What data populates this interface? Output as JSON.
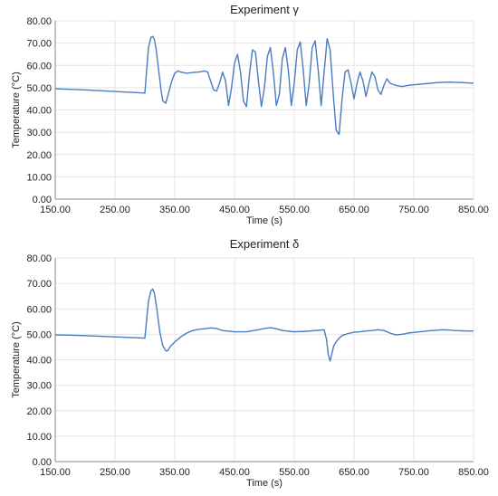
{
  "chart_data": [
    {
      "type": "line",
      "title": "Experiment γ",
      "xlabel": "Time (s)",
      "ylabel": "Temperature (°C)",
      "xlim": [
        150,
        850
      ],
      "ylim": [
        0,
        80
      ],
      "x_ticks": [
        "150.00",
        "250.00",
        "350.00",
        "450.00",
        "550.00",
        "650.00",
        "750.00",
        "850.00"
      ],
      "y_ticks": [
        "0.00",
        "10.00",
        "20.00",
        "30.00",
        "40.00",
        "50.00",
        "60.00",
        "70.00",
        "80.00"
      ],
      "grid": true,
      "series": [
        {
          "color": "#4a7cc0",
          "x": [
            150,
            200,
            250,
            300,
            303,
            306,
            310,
            313,
            316,
            319,
            323,
            327,
            330,
            335,
            340,
            345,
            350,
            355,
            360,
            370,
            380,
            390,
            400,
            405,
            410,
            415,
            420,
            425,
            430,
            435,
            440,
            445,
            450,
            455,
            460,
            465,
            470,
            475,
            480,
            485,
            490,
            495,
            500,
            505,
            510,
            515,
            520,
            525,
            530,
            535,
            540,
            545,
            550,
            555,
            560,
            565,
            570,
            575,
            580,
            585,
            590,
            595,
            600,
            605,
            610,
            615,
            620,
            625,
            630,
            635,
            640,
            645,
            650,
            655,
            660,
            665,
            670,
            675,
            680,
            685,
            690,
            695,
            700,
            705,
            710,
            720,
            730,
            740,
            750,
            770,
            790,
            810,
            830,
            850
          ],
          "values": [
            49.5,
            49.0,
            48.3,
            47.6,
            58.0,
            68.0,
            72.5,
            73.0,
            71.5,
            67.0,
            58.0,
            49.0,
            44.0,
            43.0,
            48.0,
            53.0,
            56.5,
            57.5,
            57.0,
            56.5,
            56.8,
            57.0,
            57.5,
            57.0,
            53.0,
            49.0,
            48.5,
            52.0,
            57.0,
            53.0,
            42.0,
            50.0,
            61.0,
            65.0,
            57.0,
            44.0,
            41.5,
            56.0,
            67.0,
            66.0,
            53.0,
            41.5,
            50.0,
            64.0,
            68.0,
            57.0,
            42.0,
            47.0,
            63.0,
            68.0,
            58.0,
            42.0,
            52.0,
            67.0,
            70.5,
            58.0,
            42.0,
            52.0,
            68.0,
            71.0,
            58.0,
            42.0,
            57.0,
            72.0,
            67.0,
            48.0,
            31.0,
            29.0,
            45.0,
            57.0,
            58.0,
            52.0,
            45.0,
            52.0,
            57.0,
            53.0,
            46.0,
            52.0,
            57.0,
            55.0,
            49.0,
            47.0,
            51.0,
            54.0,
            52.0,
            51.0,
            50.5,
            51.0,
            51.3,
            51.8,
            52.3,
            52.5,
            52.3,
            52.0
          ]
        }
      ]
    },
    {
      "type": "line",
      "title": "Experiment δ",
      "xlabel": "Time (s)",
      "ylabel": "Temperature (°C)",
      "xlim": [
        150,
        850
      ],
      "ylim": [
        0,
        80
      ],
      "x_ticks": [
        "150.00",
        "250.00",
        "350.00",
        "450.00",
        "550.00",
        "650.00",
        "750.00",
        "850.00"
      ],
      "y_ticks": [
        "0.00",
        "10.00",
        "20.00",
        "30.00",
        "40.00",
        "50.00",
        "60.00",
        "70.00",
        "80.00"
      ],
      "grid": true,
      "series": [
        {
          "color": "#4a7cc0",
          "x": [
            150,
            200,
            250,
            300,
            303,
            306,
            310,
            313,
            316,
            320,
            325,
            330,
            335,
            338,
            342,
            350,
            360,
            370,
            380,
            390,
            400,
            410,
            420,
            430,
            450,
            470,
            490,
            500,
            510,
            520,
            530,
            550,
            570,
            590,
            600,
            604,
            607,
            610,
            613,
            616,
            620,
            625,
            630,
            640,
            650,
            660,
            670,
            680,
            690,
            700,
            710,
            720,
            730,
            740,
            760,
            780,
            800,
            820,
            840,
            850
          ],
          "values": [
            49.8,
            49.5,
            49.0,
            48.5,
            56.0,
            63.0,
            67.0,
            67.8,
            66.0,
            60.0,
            51.0,
            45.5,
            43.5,
            43.5,
            45.0,
            47.0,
            49.0,
            50.5,
            51.5,
            52.0,
            52.2,
            52.5,
            52.3,
            51.5,
            51.0,
            51.0,
            51.8,
            52.3,
            52.6,
            52.2,
            51.5,
            51.0,
            51.2,
            51.6,
            51.8,
            48.0,
            42.0,
            39.5,
            42.5,
            45.5,
            47.0,
            48.5,
            49.5,
            50.3,
            50.8,
            51.0,
            51.3,
            51.5,
            51.8,
            51.5,
            50.5,
            49.8,
            50.0,
            50.5,
            51.0,
            51.5,
            51.8,
            51.5,
            51.3,
            51.3
          ]
        }
      ]
    }
  ]
}
